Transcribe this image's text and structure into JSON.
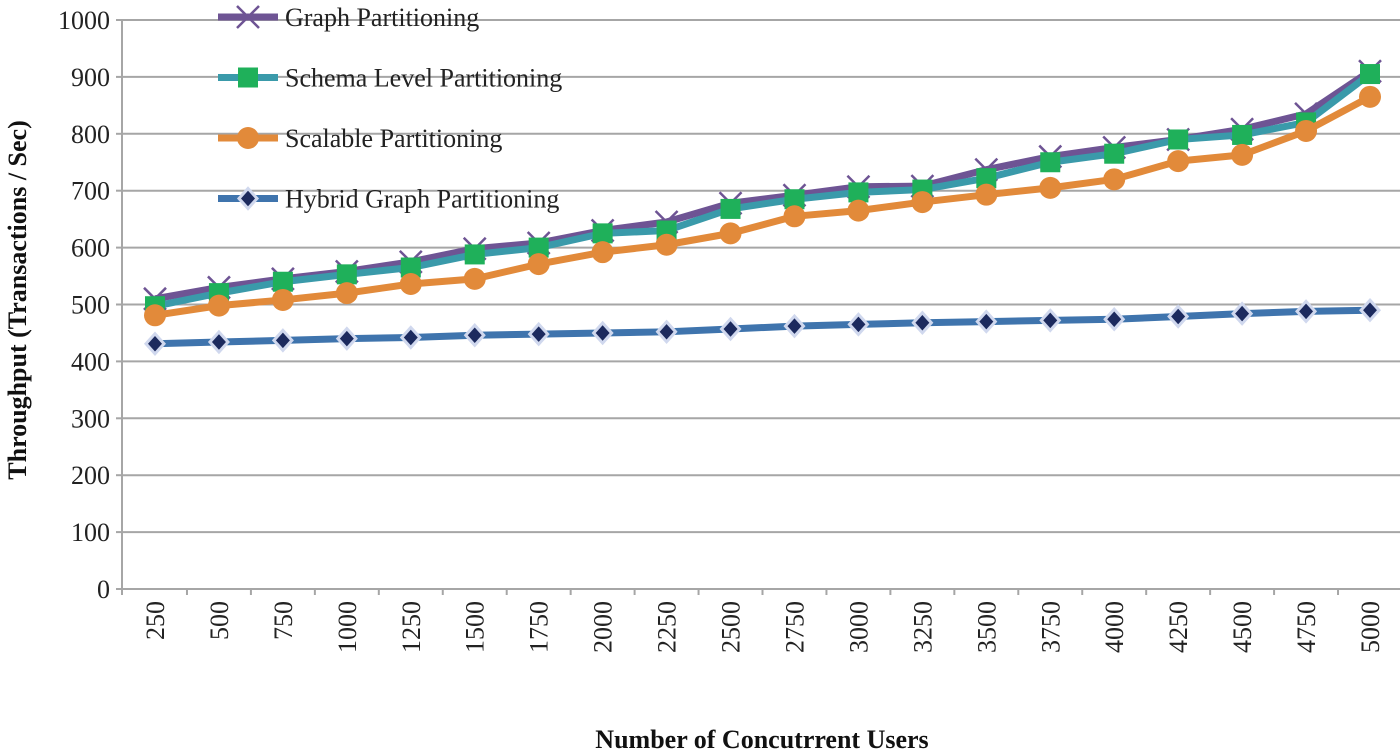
{
  "chart_data": {
    "type": "line",
    "title": "",
    "xlabel": "Number of Concutrrent Users",
    "ylabel": "Throughput (Transactions / Sec)",
    "ylim": [
      0,
      1000
    ],
    "yticks": [
      "0",
      "100",
      "200",
      "300",
      "400",
      "500",
      "600",
      "700",
      "800",
      "900",
      "1000"
    ],
    "grid": true,
    "legend_position": "top-left",
    "categories": [
      "250",
      "500",
      "750",
      "1000",
      "1250",
      "1500",
      "1750",
      "2000",
      "2250",
      "2500",
      "2750",
      "3000",
      "3250",
      "3500",
      "3750",
      "4000",
      "4250",
      "4500",
      "4750",
      "5000"
    ],
    "series": [
      {
        "name": "Graph Partitioning",
        "color": "#6e5494",
        "marker": "x",
        "values": [
          510,
          530,
          545,
          558,
          575,
          598,
          608,
          630,
          645,
          678,
          692,
          707,
          708,
          737,
          760,
          776,
          790,
          808,
          835,
          910
        ]
      },
      {
        "name": "Schema Level Partitioning",
        "color": "#3a9aaa",
        "marker": "square",
        "marker_color": "#1fb05a",
        "values": [
          497,
          520,
          540,
          553,
          565,
          588,
          600,
          625,
          630,
          668,
          685,
          697,
          702,
          722,
          750,
          765,
          790,
          798,
          820,
          905
        ]
      },
      {
        "name": "Scalable  Partitioning",
        "color": "#e28a3a",
        "marker": "circle",
        "values": [
          481,
          498,
          508,
          520,
          536,
          545,
          571,
          592,
          605,
          625,
          655,
          665,
          680,
          693,
          705,
          720,
          752,
          763,
          805,
          865
        ]
      },
      {
        "name": "Hybrid Graph Partitioning",
        "color": "#3f74ad",
        "marker": "diamond",
        "marker_color": "#1c2a5e",
        "values": [
          431,
          434,
          437,
          440,
          442,
          446,
          448,
          450,
          452,
          457,
          462,
          465,
          468,
          470,
          472,
          474,
          479,
          484,
          488,
          490
        ]
      }
    ]
  }
}
